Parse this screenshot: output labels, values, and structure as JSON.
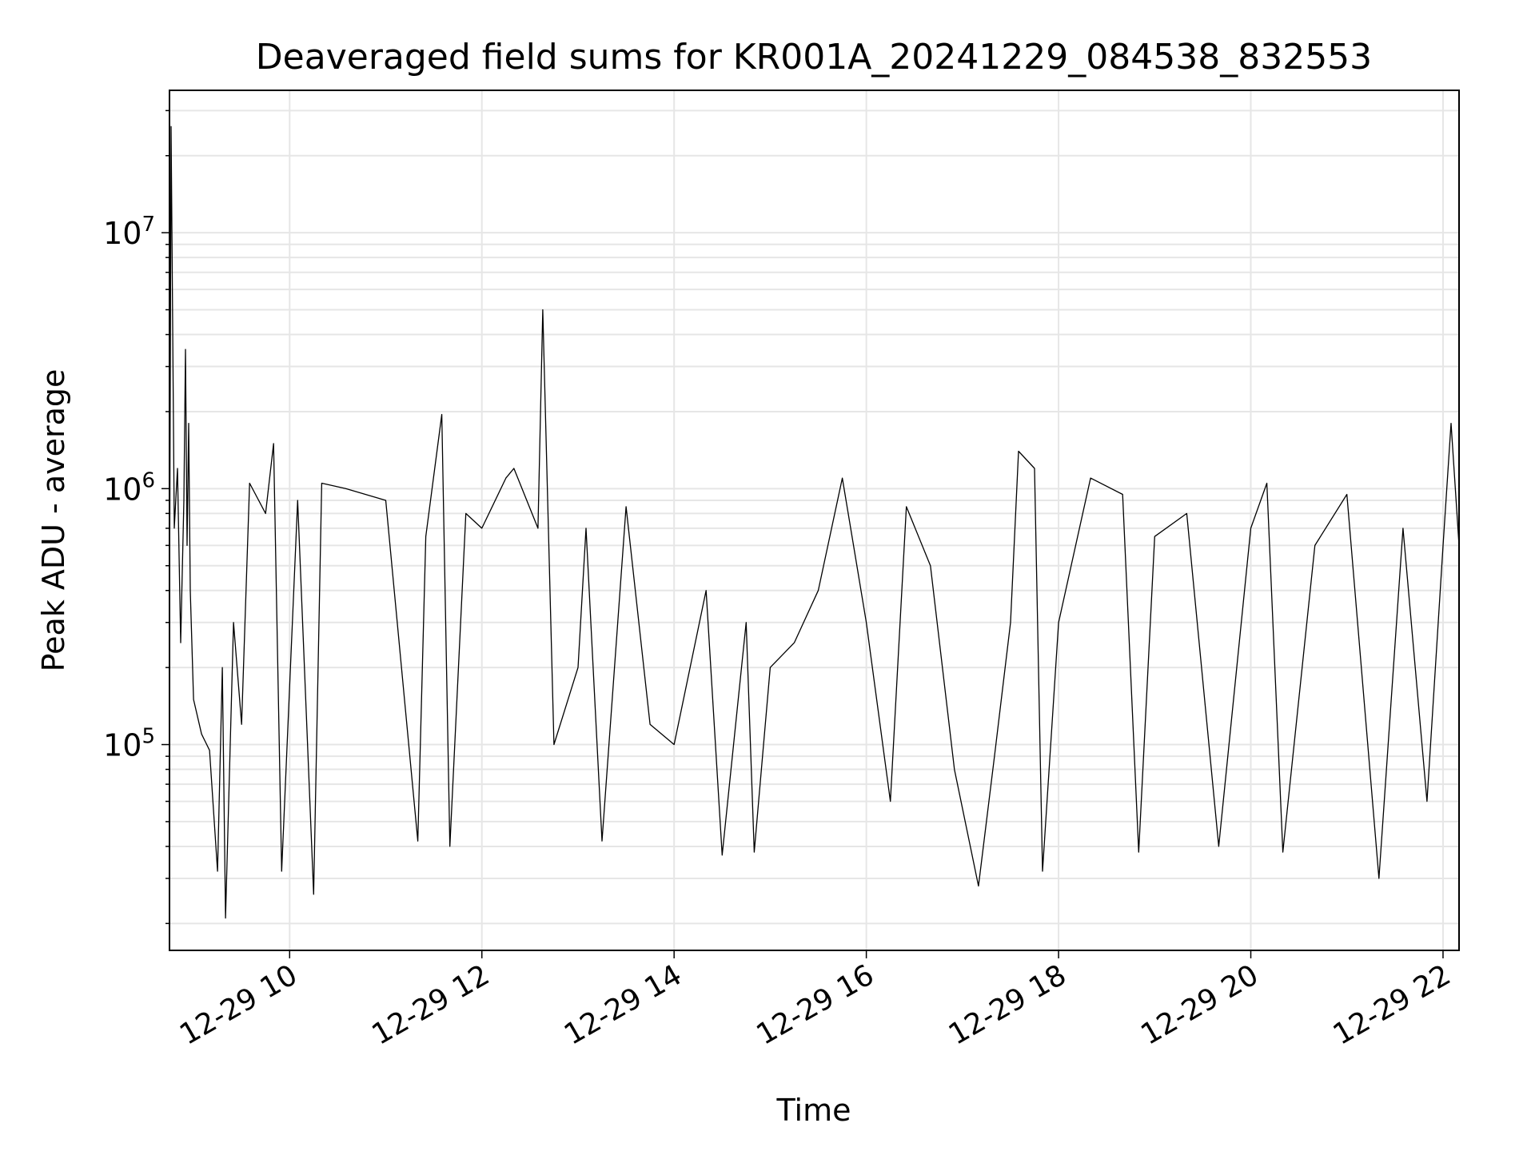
{
  "chart_data": {
    "type": "line",
    "title": "Deaveraged field sums for KR001A_20241229_084538_832553",
    "xlabel": "Time",
    "ylabel": "Peak ADU - average",
    "yscale": "log",
    "ylim": [
      15700,
      36000000
    ],
    "xlim": [
      "2024-12-29 08:45",
      "2024-12-29 22:10"
    ],
    "xticks": [
      {
        "t": "2024-12-29 10:00",
        "label": "12-29 10"
      },
      {
        "t": "2024-12-29 12:00",
        "label": "12-29 12"
      },
      {
        "t": "2024-12-29 14:00",
        "label": "12-29 14"
      },
      {
        "t": "2024-12-29 16:00",
        "label": "12-29 16"
      },
      {
        "t": "2024-12-29 18:00",
        "label": "12-29 18"
      },
      {
        "t": "2024-12-29 20:00",
        "label": "12-29 20"
      },
      {
        "t": "2024-12-29 22:00",
        "label": "12-29 22"
      }
    ],
    "yticks": [
      {
        "value": 100000,
        "base": "10",
        "exp": "5"
      },
      {
        "value": 1000000,
        "base": "10",
        "exp": "6"
      },
      {
        "value": 10000000,
        "base": "10",
        "exp": "7"
      }
    ],
    "grid": true,
    "line_color": "#000000",
    "grid_color": "#e6e6e6",
    "series": [
      {
        "points": [
          [
            "2024-12-29 08:45",
            300000
          ],
          [
            "2024-12-29 08:46",
            26000000
          ],
          [
            "2024-12-29 08:48",
            700000
          ],
          [
            "2024-12-29 08:50",
            1200000
          ],
          [
            "2024-12-29 08:52",
            250000
          ],
          [
            "2024-12-29 08:54",
            900000
          ],
          [
            "2024-12-29 08:55",
            3500000
          ],
          [
            "2024-12-29 08:56",
            600000
          ],
          [
            "2024-12-29 08:57",
            1800000
          ],
          [
            "2024-12-29 08:58",
            400000
          ],
          [
            "2024-12-29 09:00",
            150000
          ],
          [
            "2024-12-29 09:05",
            110000
          ],
          [
            "2024-12-29 09:10",
            95000
          ],
          [
            "2024-12-29 09:15",
            32000
          ],
          [
            "2024-12-29 09:18",
            200000
          ],
          [
            "2024-12-29 09:20",
            21000
          ],
          [
            "2024-12-29 09:25",
            300000
          ],
          [
            "2024-12-29 09:30",
            120000
          ],
          [
            "2024-12-29 09:35",
            1050000
          ],
          [
            "2024-12-29 09:45",
            800000
          ],
          [
            "2024-12-29 09:50",
            1500000
          ],
          [
            "2024-12-29 09:55",
            32000
          ],
          [
            "2024-12-29 10:05",
            900000
          ],
          [
            "2024-12-29 10:15",
            26000
          ],
          [
            "2024-12-29 10:20",
            1050000
          ],
          [
            "2024-12-29 10:35",
            1000000
          ],
          [
            "2024-12-29 11:00",
            900000
          ],
          [
            "2024-12-29 11:20",
            42000
          ],
          [
            "2024-12-29 11:25",
            650000
          ],
          [
            "2024-12-29 11:35",
            1950000
          ],
          [
            "2024-12-29 11:40",
            40000
          ],
          [
            "2024-12-29 11:50",
            800000
          ],
          [
            "2024-12-29 12:00",
            700000
          ],
          [
            "2024-12-29 12:15",
            1100000
          ],
          [
            "2024-12-29 12:20",
            1200000
          ],
          [
            "2024-12-29 12:35",
            700000
          ],
          [
            "2024-12-29 12:38",
            5000000
          ],
          [
            "2024-12-29 12:45",
            100000
          ],
          [
            "2024-12-29 13:00",
            200000
          ],
          [
            "2024-12-29 13:05",
            700000
          ],
          [
            "2024-12-29 13:15",
            42000
          ],
          [
            "2024-12-29 13:30",
            850000
          ],
          [
            "2024-12-29 13:45",
            120000
          ],
          [
            "2024-12-29 14:00",
            100000
          ],
          [
            "2024-12-29 14:20",
            400000
          ],
          [
            "2024-12-29 14:30",
            37000
          ],
          [
            "2024-12-29 14:45",
            300000
          ],
          [
            "2024-12-29 14:50",
            38000
          ],
          [
            "2024-12-29 15:00",
            200000
          ],
          [
            "2024-12-29 15:15",
            250000
          ],
          [
            "2024-12-29 15:30",
            400000
          ],
          [
            "2024-12-29 15:45",
            1100000
          ],
          [
            "2024-12-29 16:00",
            300000
          ],
          [
            "2024-12-29 16:15",
            60000
          ],
          [
            "2024-12-29 16:25",
            850000
          ],
          [
            "2024-12-29 16:40",
            500000
          ],
          [
            "2024-12-29 16:55",
            80000
          ],
          [
            "2024-12-29 17:10",
            28000
          ],
          [
            "2024-12-29 17:20",
            90000
          ],
          [
            "2024-12-29 17:30",
            300000
          ],
          [
            "2024-12-29 17:35",
            1400000
          ],
          [
            "2024-12-29 17:45",
            1200000
          ],
          [
            "2024-12-29 17:50",
            32000
          ],
          [
            "2024-12-29 18:00",
            300000
          ],
          [
            "2024-12-29 18:20",
            1100000
          ],
          [
            "2024-12-29 18:40",
            950000
          ],
          [
            "2024-12-29 18:50",
            38000
          ],
          [
            "2024-12-29 19:00",
            650000
          ],
          [
            "2024-12-29 19:20",
            800000
          ],
          [
            "2024-12-29 19:40",
            40000
          ],
          [
            "2024-12-29 20:00",
            700000
          ],
          [
            "2024-12-29 20:10",
            1050000
          ],
          [
            "2024-12-29 20:20",
            38000
          ],
          [
            "2024-12-29 20:40",
            600000
          ],
          [
            "2024-12-29 21:00",
            950000
          ],
          [
            "2024-12-29 21:20",
            30000
          ],
          [
            "2024-12-29 21:35",
            700000
          ],
          [
            "2024-12-29 21:50",
            60000
          ],
          [
            "2024-12-29 22:00",
            600000
          ],
          [
            "2024-12-29 22:05",
            1800000
          ],
          [
            "2024-12-29 22:10",
            600000
          ]
        ]
      }
    ]
  }
}
